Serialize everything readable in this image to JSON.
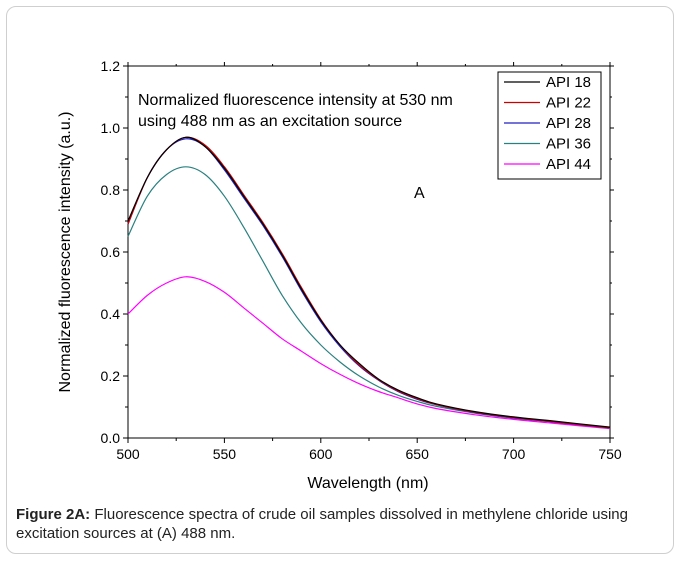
{
  "figure": {
    "caption_label": "Figure 2A:",
    "caption_text": " Fluorescence spectra of crude oil samples dissolved in methylene chloride using excitation sources at (A) 488 nm."
  },
  "chart_data": {
    "type": "line",
    "title": "",
    "xlabel": "Wavelength (nm)",
    "ylabel": "Normalized fluorescence intensity (a.u.)",
    "xlim": [
      500,
      750
    ],
    "ylim": [
      0.0,
      1.2
    ],
    "xticks": [
      500,
      550,
      600,
      650,
      700,
      750
    ],
    "yticks": [
      0.0,
      0.2,
      0.4,
      0.6,
      0.8,
      1.0,
      1.2
    ],
    "xtick_labels": [
      "500",
      "550",
      "600",
      "650",
      "700",
      "750"
    ],
    "ytick_labels": [
      "0.0",
      "0.2",
      "0.4",
      "0.6",
      "0.8",
      "1.0",
      "1.2"
    ],
    "legend_position": "top-right",
    "grid": false,
    "annotations": [
      "Normalized fluorescence intensity at 530 nm",
      "using 488 nm as an excitation source",
      "A"
    ],
    "x": [
      500,
      510,
      520,
      530,
      540,
      550,
      560,
      570,
      580,
      590,
      600,
      610,
      620,
      630,
      640,
      650,
      660,
      680,
      700,
      720,
      750
    ],
    "series": [
      {
        "name": "API 18",
        "color": "#000000",
        "values": [
          0.7,
          0.84,
          0.93,
          0.97,
          0.94,
          0.87,
          0.78,
          0.69,
          0.59,
          0.48,
          0.38,
          0.3,
          0.24,
          0.19,
          0.155,
          0.13,
          0.11,
          0.085,
          0.068,
          0.055,
          0.035
        ]
      },
      {
        "name": "API 22",
        "color": "#cc0000",
        "values": [
          0.69,
          0.84,
          0.93,
          0.97,
          0.945,
          0.875,
          0.785,
          0.695,
          0.595,
          0.485,
          0.383,
          0.3,
          0.235,
          0.188,
          0.152,
          0.127,
          0.108,
          0.083,
          0.066,
          0.053,
          0.033
        ]
      },
      {
        "name": "API 28",
        "color": "#2020c0",
        "values": [
          0.69,
          0.84,
          0.93,
          0.965,
          0.94,
          0.865,
          0.775,
          0.685,
          0.585,
          0.475,
          0.375,
          0.295,
          0.232,
          0.186,
          0.15,
          0.125,
          0.107,
          0.082,
          0.065,
          0.052,
          0.033
        ]
      },
      {
        "name": "API 36",
        "color": "#2a8080",
        "values": [
          0.65,
          0.78,
          0.85,
          0.875,
          0.85,
          0.78,
          0.68,
          0.57,
          0.46,
          0.37,
          0.3,
          0.245,
          0.2,
          0.165,
          0.138,
          0.118,
          0.102,
          0.08,
          0.064,
          0.052,
          0.032
        ]
      },
      {
        "name": "API 44",
        "color": "#ff00ff",
        "values": [
          0.4,
          0.46,
          0.5,
          0.52,
          0.505,
          0.47,
          0.42,
          0.37,
          0.32,
          0.28,
          0.24,
          0.205,
          0.175,
          0.15,
          0.13,
          0.11,
          0.095,
          0.075,
          0.06,
          0.048,
          0.03
        ]
      }
    ]
  }
}
